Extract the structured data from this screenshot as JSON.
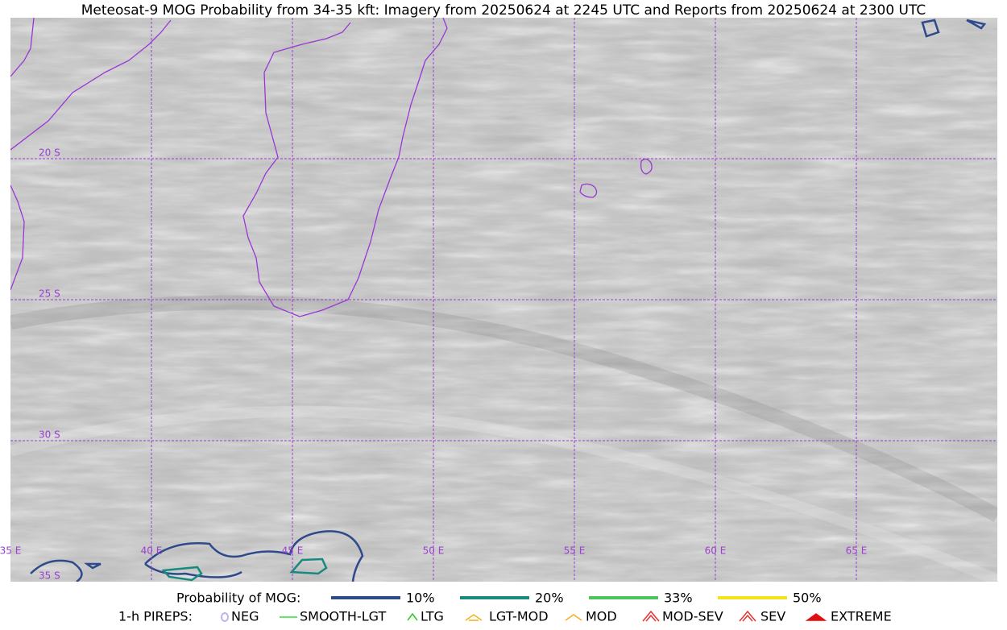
{
  "title": "Meteosat-9 MOG Probability from 34-35 kft: Imagery from 20250624 at 2245 UTC and Reports from 20250624 at 2300 UTC",
  "grid_labels": {
    "latitudes": [
      "20 S",
      "25 S",
      "30 S",
      "35 S"
    ],
    "longitudes": [
      "35 E",
      "40 E",
      "45 E",
      "50 E",
      "55 E",
      "60 E",
      "65 E"
    ]
  },
  "legend": {
    "probability": {
      "label": "Probability of MOG:",
      "items": [
        {
          "label": "10%",
          "color": "#2e4a8b"
        },
        {
          "label": "20%",
          "color": "#168a7e"
        },
        {
          "label": "33%",
          "color": "#4cc45a"
        },
        {
          "label": "50%",
          "color": "#f5e31a"
        }
      ]
    },
    "pireps": {
      "label": "1-h PIREPS:",
      "items": [
        {
          "label": "NEG",
          "color": "#b9b6ee"
        },
        {
          "label": "SMOOTH-LGT",
          "color": "#33dd33"
        },
        {
          "label": "LTG",
          "color": "#22cc22"
        },
        {
          "label": "LGT-MOD",
          "color": "#f2b01e"
        },
        {
          "label": "MOD",
          "color": "#f2b01e"
        },
        {
          "label": "MOD-SEV",
          "color": "#e83030"
        },
        {
          "label": "SEV",
          "color": "#e83030"
        },
        {
          "label": "EXTREME",
          "color": "#e01010"
        }
      ]
    }
  }
}
